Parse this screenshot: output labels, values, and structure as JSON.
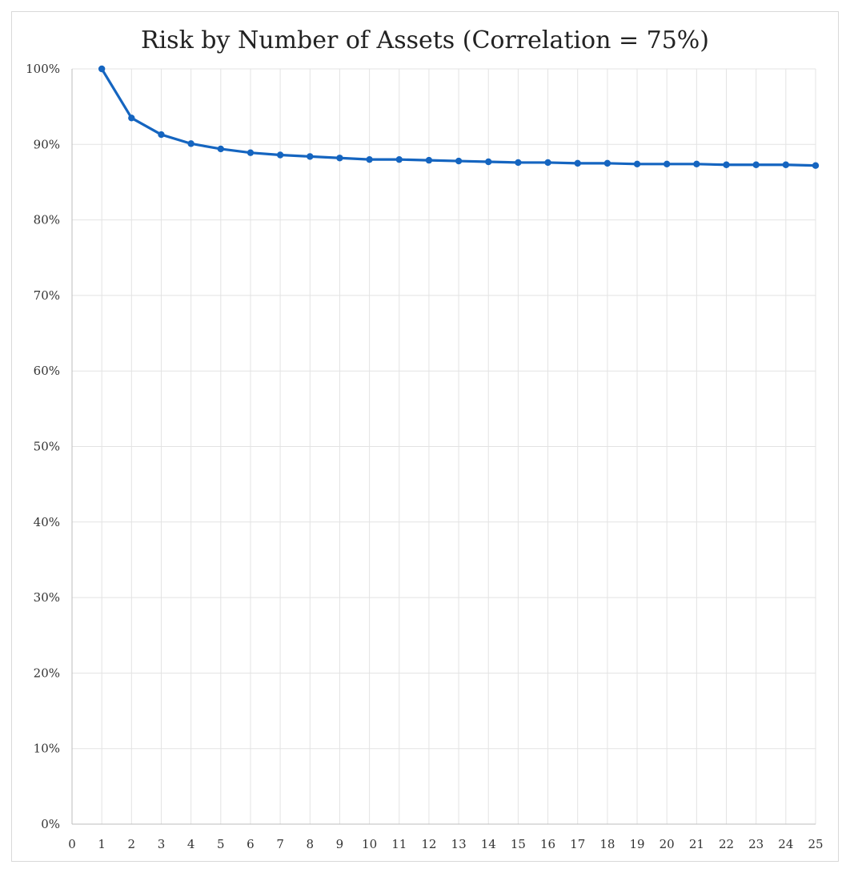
{
  "chart_data": {
    "type": "line",
    "title": "Risk by Number of Assets (Correlation = 75%)",
    "xlabel": "",
    "ylabel": "",
    "x_ticks": [
      0,
      1,
      2,
      3,
      4,
      5,
      6,
      7,
      8,
      9,
      10,
      11,
      12,
      13,
      14,
      15,
      16,
      17,
      18,
      19,
      20,
      21,
      22,
      23,
      24,
      25
    ],
    "y_ticks": [
      "0%",
      "10%",
      "20%",
      "30%",
      "40%",
      "50%",
      "60%",
      "70%",
      "80%",
      "90%",
      "100%"
    ],
    "xlim": [
      0,
      25
    ],
    "ylim": [
      0,
      100
    ],
    "grid": true,
    "legend": "none",
    "series": [
      {
        "color": "#1565c0",
        "x": [
          1,
          2,
          3,
          4,
          5,
          6,
          7,
          8,
          9,
          10,
          11,
          12,
          13,
          14,
          15,
          16,
          17,
          18,
          19,
          20,
          21,
          22,
          23,
          24,
          25
        ],
        "values": [
          100.0,
          93.5,
          91.3,
          90.1,
          89.4,
          88.9,
          88.6,
          88.4,
          88.2,
          88.0,
          88.0,
          87.9,
          87.8,
          87.7,
          87.6,
          87.6,
          87.5,
          87.5,
          87.4,
          87.4,
          87.4,
          87.3,
          87.3,
          87.3,
          87.2
        ]
      }
    ]
  }
}
